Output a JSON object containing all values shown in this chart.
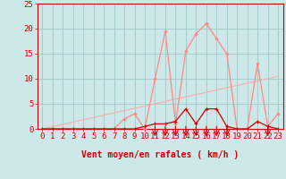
{
  "x_labels": [
    "0",
    "1",
    "2",
    "3",
    "4",
    "5",
    "6",
    "7",
    "8",
    "9",
    "10",
    "11",
    "12",
    "13",
    "14",
    "15",
    "16",
    "17",
    "18",
    "19",
    "20",
    "21",
    "22",
    "23"
  ],
  "rafales_y": [
    0,
    0,
    0,
    0,
    0,
    0,
    0,
    0,
    2,
    3,
    0,
    10,
    19.5,
    1,
    15.5,
    19,
    21,
    18,
    15,
    0,
    0,
    13,
    0.5,
    3
  ],
  "moyen_y": [
    0,
    0,
    0,
    0,
    0,
    0,
    0,
    0,
    0,
    0,
    0.5,
    1,
    1,
    1.5,
    4,
    1,
    4,
    4,
    0.5,
    0,
    0,
    1.5,
    0.5,
    0
  ],
  "trend_x": [
    0,
    23
  ],
  "trend_y": [
    0,
    10.5
  ],
  "arrows_x": [
    11,
    12,
    13,
    14,
    15,
    16,
    17,
    18,
    22
  ],
  "bg_color": "#cde8e8",
  "grid_color": "#a0c8c8",
  "rafales_color": "#ff8888",
  "moyen_color": "#cc0000",
  "trend_color": "#ffaaaa",
  "arrow_color": "#cc0000",
  "xlabel": "Vent moyen/en rafales ( km/h )",
  "ylim": [
    0,
    25
  ],
  "xlim": [
    -0.5,
    23.5
  ],
  "yticks": [
    0,
    5,
    10,
    15,
    20,
    25
  ],
  "label_fontsize": 6.5
}
